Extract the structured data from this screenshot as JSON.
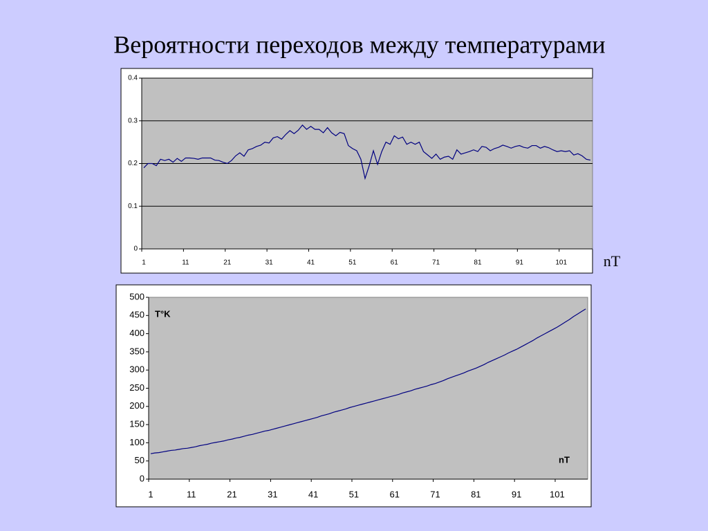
{
  "title": "Вероятности переходов между температурами",
  "chart_data": [
    {
      "type": "line",
      "color": "#000080",
      "grid": true,
      "x_label": "nT",
      "categories": [
        1,
        null,
        null,
        null,
        null,
        null,
        null,
        null,
        null,
        null,
        11,
        null,
        null,
        null,
        null,
        null,
        null,
        null,
        null,
        null,
        21,
        null,
        null,
        null,
        null,
        null,
        null,
        null,
        null,
        null,
        31,
        null,
        null,
        null,
        null,
        null,
        null,
        null,
        null,
        null,
        41,
        null,
        null,
        null,
        null,
        null,
        null,
        null,
        null,
        null,
        51,
        null,
        null,
        null,
        null,
        null,
        null,
        null,
        null,
        null,
        61,
        null,
        null,
        null,
        null,
        null,
        null,
        null,
        null,
        null,
        71,
        null,
        null,
        null,
        null,
        null,
        null,
        null,
        null,
        null,
        81,
        null,
        null,
        null,
        null,
        null,
        null,
        null,
        null,
        null,
        91,
        null,
        null,
        null,
        null,
        null,
        null,
        null,
        null,
        null,
        101,
        null,
        null,
        null,
        null,
        null,
        null,
        null
      ],
      "values": [
        0.19,
        0.2,
        0.2,
        0.195,
        0.21,
        0.207,
        0.21,
        0.203,
        0.212,
        0.205,
        0.213,
        0.213,
        0.212,
        0.21,
        0.213,
        0.213,
        0.213,
        0.208,
        0.207,
        0.203,
        0.2,
        0.207,
        0.218,
        0.225,
        0.217,
        0.232,
        0.235,
        0.24,
        0.243,
        0.25,
        0.248,
        0.26,
        0.263,
        0.257,
        0.268,
        0.277,
        0.27,
        0.278,
        0.29,
        0.28,
        0.287,
        0.28,
        0.28,
        0.272,
        0.284,
        0.272,
        0.265,
        0.273,
        0.27,
        0.242,
        0.235,
        0.23,
        0.21,
        0.165,
        0.195,
        0.23,
        0.198,
        0.228,
        0.25,
        0.245,
        0.265,
        0.258,
        0.262,
        0.245,
        0.25,
        0.245,
        0.25,
        0.228,
        0.22,
        0.212,
        0.222,
        0.21,
        0.215,
        0.217,
        0.21,
        0.232,
        0.222,
        0.225,
        0.228,
        0.232,
        0.228,
        0.24,
        0.238,
        0.23,
        0.235,
        0.238,
        0.243,
        0.24,
        0.236,
        0.24,
        0.242,
        0.238,
        0.236,
        0.242,
        0.242,
        0.236,
        0.24,
        0.237,
        0.232,
        0.228,
        0.23,
        0.228,
        0.23,
        0.22,
        0.223,
        0.218,
        0.21,
        0.208
      ],
      "ylim": [
        0,
        0.4
      ],
      "yticks": [
        0,
        0.1,
        0.2,
        0.3,
        0.4
      ]
    },
    {
      "type": "line",
      "color": "#000080",
      "grid": false,
      "x_label": "nT",
      "y_label": "T°K",
      "categories": [
        1,
        null,
        null,
        null,
        null,
        null,
        null,
        null,
        null,
        null,
        11,
        null,
        null,
        null,
        null,
        null,
        null,
        null,
        null,
        null,
        21,
        null,
        null,
        null,
        null,
        null,
        null,
        null,
        null,
        null,
        31,
        null,
        null,
        null,
        null,
        null,
        null,
        null,
        null,
        null,
        41,
        null,
        null,
        null,
        null,
        null,
        null,
        null,
        null,
        null,
        51,
        null,
        null,
        null,
        null,
        null,
        null,
        null,
        null,
        null,
        61,
        null,
        null,
        null,
        null,
        null,
        null,
        null,
        null,
        null,
        71,
        null,
        null,
        null,
        null,
        null,
        null,
        null,
        null,
        null,
        81,
        null,
        null,
        null,
        null,
        null,
        null,
        null,
        null,
        null,
        91,
        null,
        null,
        null,
        null,
        null,
        null,
        null,
        null,
        null,
        101,
        null,
        null,
        null,
        null,
        null,
        null,
        null
      ],
      "values": [
        70,
        72,
        73,
        75,
        77,
        79,
        80,
        82,
        84,
        85,
        87,
        89,
        92,
        94,
        96,
        99,
        101,
        103,
        105,
        108,
        110,
        113,
        115,
        118,
        121,
        123,
        126,
        129,
        132,
        134,
        137,
        140,
        143,
        146,
        149,
        152,
        155,
        158,
        161,
        164,
        167,
        170,
        174,
        177,
        180,
        184,
        187,
        190,
        193,
        197,
        200,
        203,
        206,
        209,
        212,
        215,
        218,
        221,
        224,
        227,
        230,
        233,
        237,
        240,
        243,
        247,
        250,
        253,
        256,
        260,
        263,
        267,
        271,
        276,
        280,
        284,
        288,
        292,
        297,
        301,
        305,
        310,
        315,
        321,
        326,
        331,
        336,
        341,
        347,
        352,
        357,
        363,
        369,
        375,
        381,
        388,
        394,
        400,
        406,
        412,
        418,
        425,
        432,
        439,
        447,
        454,
        461,
        468
      ],
      "ylim": [
        0,
        500
      ],
      "yticks": [
        0,
        50,
        100,
        150,
        200,
        250,
        300,
        350,
        400,
        450,
        500
      ]
    }
  ]
}
